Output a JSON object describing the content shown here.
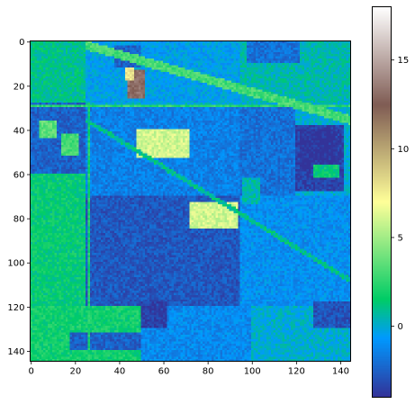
{
  "chart_data": {
    "type": "heatmap",
    "title": "",
    "xlabel": "",
    "ylabel": "",
    "rows": 145,
    "cols": 145,
    "xlim": [
      -0.5,
      144.5
    ],
    "ylim": [
      144.5,
      -0.5
    ],
    "x_ticks": [
      0,
      20,
      40,
      60,
      80,
      100,
      120,
      140
    ],
    "y_ticks": [
      0,
      20,
      40,
      60,
      80,
      100,
      120,
      140
    ],
    "colormap": "terrain",
    "colorbar": {
      "vmin": -4,
      "vmax": 18,
      "ticks": [
        0,
        5,
        10,
        15
      ],
      "position": "right"
    },
    "background_value": 0,
    "regions": [
      {
        "label": "upper-left field",
        "rows": [
          0,
          28
        ],
        "cols": [
          0,
          25
        ],
        "value": 1.0
      },
      {
        "label": "upper-middle field",
        "rows": [
          0,
          28
        ],
        "cols": [
          25,
          95
        ],
        "value": -0.5
      },
      {
        "label": "upper-right field",
        "rows": [
          0,
          28
        ],
        "cols": [
          95,
          145
        ],
        "value": 0.5
      },
      {
        "label": "left strip",
        "rows": [
          28,
          60
        ],
        "cols": [
          0,
          25
        ],
        "value": -2.5
      },
      {
        "label": "central field",
        "rows": [
          30,
          70
        ],
        "cols": [
          25,
          95
        ],
        "value": -1.5
      },
      {
        "label": "right-middle field",
        "rows": [
          30,
          70
        ],
        "cols": [
          95,
          120
        ],
        "value": -2.0
      },
      {
        "label": "far-right block",
        "rows": [
          38,
          68
        ],
        "cols": [
          120,
          142
        ],
        "value": -3.5
      },
      {
        "label": "left band",
        "rows": [
          60,
          120
        ],
        "cols": [
          0,
          25
        ],
        "value": 1.5
      },
      {
        "label": "lower-middle field",
        "rows": [
          70,
          120
        ],
        "cols": [
          25,
          95
        ],
        "value": -2.8
      },
      {
        "label": "lower-right field",
        "rows": [
          70,
          120
        ],
        "cols": [
          95,
          145
        ],
        "value": -1.0
      },
      {
        "label": "bottom-left field",
        "rows": [
          120,
          145
        ],
        "cols": [
          0,
          50
        ],
        "value": 1.8
      },
      {
        "label": "bottom-middle field",
        "rows": [
          120,
          145
        ],
        "cols": [
          50,
          100
        ],
        "value": -1.2
      },
      {
        "label": "bottom-right field",
        "rows": [
          120,
          145
        ],
        "cols": [
          100,
          145
        ],
        "value": 0.0
      },
      {
        "label": "upper-left blue patch",
        "rows": [
          2,
          12
        ],
        "cols": [
          38,
          50
        ],
        "value": -2.5
      },
      {
        "label": "top-right blue patch",
        "rows": [
          0,
          10
        ],
        "cols": [
          98,
          122
        ],
        "value": -2.0
      },
      {
        "label": "brown patch",
        "rows": [
          13,
          26
        ],
        "cols": [
          44,
          52
        ],
        "value": 13.0
      },
      {
        "label": "khaki patch top",
        "rows": [
          12,
          18
        ],
        "cols": [
          43,
          47
        ],
        "value": 8.0
      },
      {
        "label": "yellow patch upper",
        "rows": [
          40,
          53
        ],
        "cols": [
          48,
          72
        ],
        "value": 6.0
      },
      {
        "label": "yellow patch lower",
        "rows": [
          73,
          85
        ],
        "cols": [
          72,
          94
        ],
        "value": 6.0
      },
      {
        "label": "dark blue block right",
        "rows": [
          40,
          58
        ],
        "cols": [
          122,
          138
        ],
        "value": -4.0
      },
      {
        "label": "green strip",
        "rows": [
          56,
          62
        ],
        "cols": [
          128,
          140
        ],
        "value": 1.5
      },
      {
        "label": "dark blue block bottom",
        "rows": [
          118,
          130
        ],
        "cols": [
          50,
          62
        ],
        "value": -3.6
      },
      {
        "label": "blue strip bottom",
        "rows": [
          132,
          140
        ],
        "cols": [
          18,
          50
        ],
        "value": -2.5
      },
      {
        "label": "dark blue bottom right",
        "rows": [
          118,
          130
        ],
        "cols": [
          128,
          145
        ],
        "value": -3.0
      },
      {
        "label": "green patch left",
        "rows": [
          42,
          52
        ],
        "cols": [
          14,
          22
        ],
        "value": 3.0
      },
      {
        "label": "bright green patch",
        "rows": [
          36,
          44
        ],
        "cols": [
          4,
          12
        ],
        "value": 3.5
      },
      {
        "label": "green block mid-right",
        "rows": [
          62,
          74
        ],
        "cols": [
          96,
          104
        ],
        "value": 0.5
      }
    ],
    "diagonal_bands": [
      {
        "label": "upper road",
        "from": [
          0,
          25
        ],
        "to": [
          34,
          145
        ],
        "width": 4,
        "value": 3.0
      },
      {
        "label": "lower road",
        "from": [
          35,
          25
        ],
        "to": [
          108,
          145
        ],
        "width": 2,
        "value": 1.0
      }
    ],
    "horizontal_bands": [
      {
        "label": "row road",
        "row": 29,
        "cols": [
          0,
          145
        ],
        "width": 1,
        "value": 2.5
      }
    ],
    "vertical_bands": [
      {
        "label": "column road",
        "col": 26,
        "rows": [
          28,
          145
        ],
        "width": 1,
        "value": 2.0
      }
    ]
  }
}
